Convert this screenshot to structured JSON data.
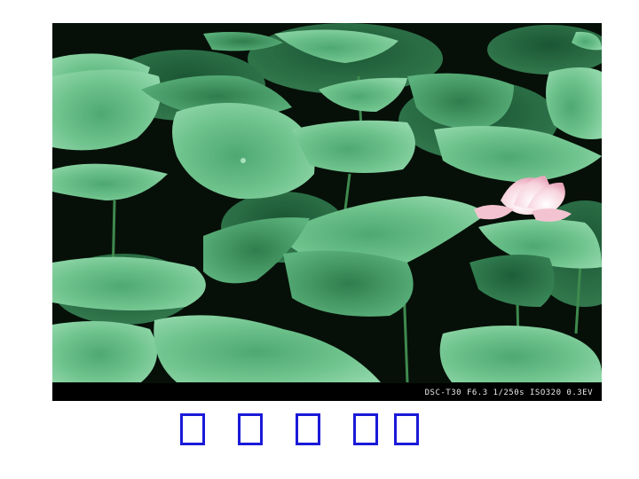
{
  "photo": {
    "subject": "lotus-pond",
    "exif_overlay": "DSC-T30 F6.3 1/250s ISO320 0.3EV"
  },
  "caption": {
    "chars": [
      "□",
      "□",
      "□",
      "□",
      "□"
    ],
    "color": "#1a1ad8"
  },
  "colors": {
    "leaf_light": "#6fc38d",
    "leaf_mid": "#3c9a63",
    "leaf_dark": "#1c5a36",
    "background_dark": "#050805",
    "lotus_flower": "#f4c9d5"
  }
}
